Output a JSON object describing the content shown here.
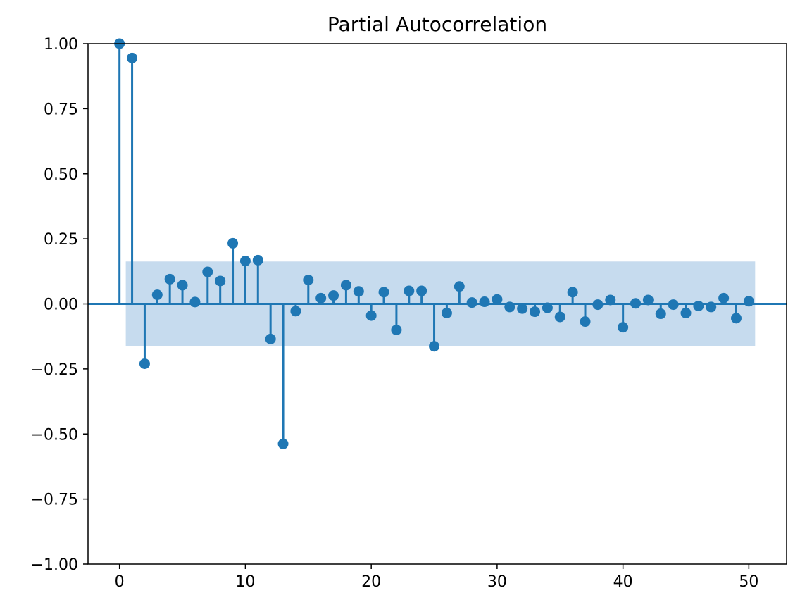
{
  "chart_data": {
    "type": "stem",
    "title": "Partial Autocorrelation",
    "xlabel": "",
    "ylabel": "",
    "xlim": [
      -2.5,
      53
    ],
    "ylim": [
      -1.0,
      1.0
    ],
    "x_ticks": [
      0,
      10,
      20,
      30,
      40,
      50
    ],
    "x_tick_labels": [
      "0",
      "10",
      "20",
      "30",
      "40",
      "50"
    ],
    "y_ticks": [
      -1.0,
      -0.75,
      -0.5,
      -0.25,
      0.0,
      0.25,
      0.5,
      0.75,
      1.0
    ],
    "y_tick_labels": [
      "−1.00",
      "−0.75",
      "−0.50",
      "−0.25",
      "0.00",
      "0.25",
      "0.50",
      "0.75",
      "1.00"
    ],
    "grid": false,
    "confidence_band": {
      "x_range": [
        0.5,
        50.5
      ],
      "y_range": [
        -0.163,
        0.163
      ]
    },
    "colors": {
      "stem": "#1f77b4",
      "band": "#c6dbee",
      "axis": "#000000"
    },
    "lags": [
      0,
      1,
      2,
      3,
      4,
      5,
      6,
      7,
      8,
      9,
      10,
      11,
      12,
      13,
      14,
      15,
      16,
      17,
      18,
      19,
      20,
      21,
      22,
      23,
      24,
      25,
      26,
      27,
      28,
      29,
      30,
      31,
      32,
      33,
      34,
      35,
      36,
      37,
      38,
      39,
      40,
      41,
      42,
      43,
      44,
      45,
      46,
      47,
      48,
      49,
      50
    ],
    "values": [
      1.0,
      0.945,
      -0.23,
      0.035,
      0.095,
      0.072,
      0.007,
      0.123,
      0.088,
      0.233,
      0.165,
      0.168,
      -0.135,
      -0.538,
      -0.028,
      0.092,
      0.022,
      0.032,
      0.072,
      0.048,
      -0.045,
      0.045,
      -0.1,
      0.05,
      0.05,
      -0.163,
      -0.035,
      0.067,
      0.005,
      0.008,
      0.017,
      -0.012,
      -0.018,
      -0.03,
      -0.015,
      -0.05,
      0.045,
      -0.068,
      -0.003,
      0.015,
      -0.09,
      0.002,
      0.015,
      -0.038,
      -0.003,
      -0.035,
      -0.008,
      -0.012,
      0.022,
      -0.055,
      0.01
    ]
  }
}
